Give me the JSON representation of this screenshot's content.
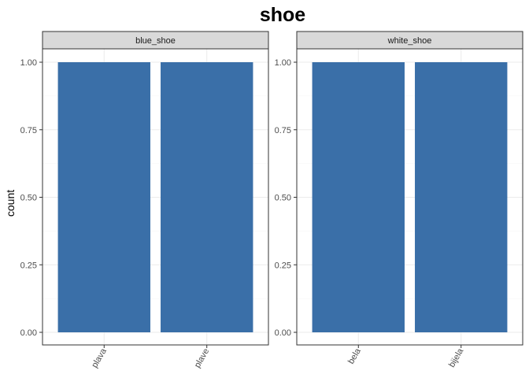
{
  "colors": {
    "bar": "#3a6fa8",
    "strip_fill": "#d9d9d9",
    "panel_border": "#333333",
    "grid_major": "#ebebeb",
    "grid_minor": "#f5f5f5"
  },
  "chart_data": {
    "type": "bar",
    "title": "shoe",
    "xlabel": "",
    "ylabel": "count",
    "ylim": [
      0,
      1.0
    ],
    "yticks": [
      "0.00",
      "0.25",
      "0.50",
      "0.75",
      "1.00"
    ],
    "grid": true,
    "facets": [
      {
        "label": "blue_shoe",
        "categories": [
          "plava",
          "plave"
        ],
        "values": [
          1,
          1
        ]
      },
      {
        "label": "white_shoe",
        "categories": [
          "bela",
          "bijela"
        ],
        "values": [
          1,
          1
        ]
      }
    ]
  }
}
